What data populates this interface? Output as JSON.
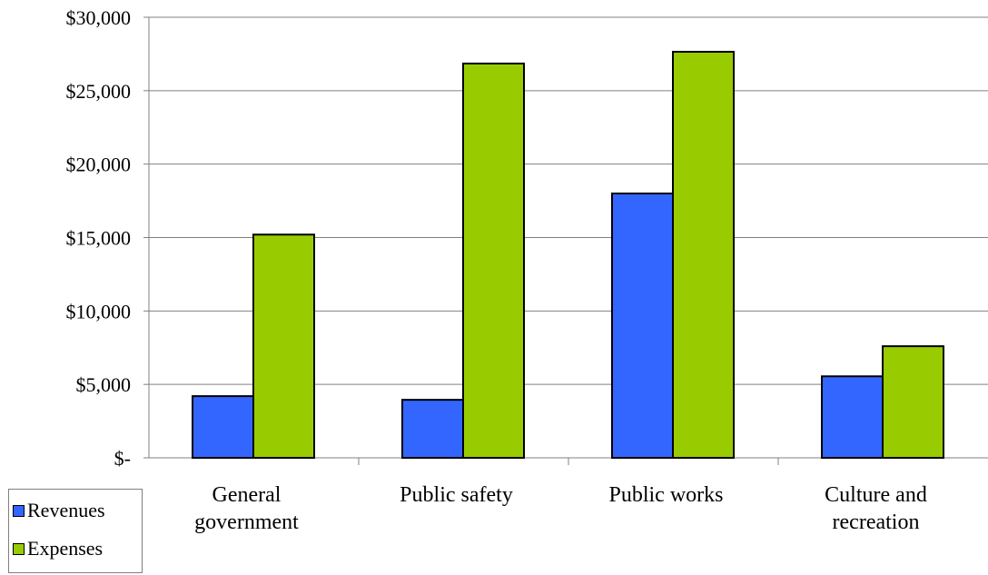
{
  "chart_data": {
    "type": "bar",
    "categories": [
      [
        "General",
        "government"
      ],
      [
        "Public safety"
      ],
      [
        "Public works"
      ],
      [
        "Culture and",
        "recreation"
      ]
    ],
    "series": [
      {
        "name": "Revenues",
        "values": [
          4200,
          3950,
          18000,
          5550
        ],
        "color": "#3366ff"
      },
      {
        "name": "Expenses",
        "values": [
          15200,
          26850,
          27650,
          7600
        ],
        "color": "#99cc00"
      }
    ],
    "yticks": [
      "$-",
      "$5,000",
      "$10,000",
      "$15,000",
      "$20,000",
      "$25,000",
      "$30,000"
    ],
    "ylim": [
      0,
      30000
    ],
    "ystep": 5000,
    "grid": true,
    "legend_position": "bottom-left"
  }
}
